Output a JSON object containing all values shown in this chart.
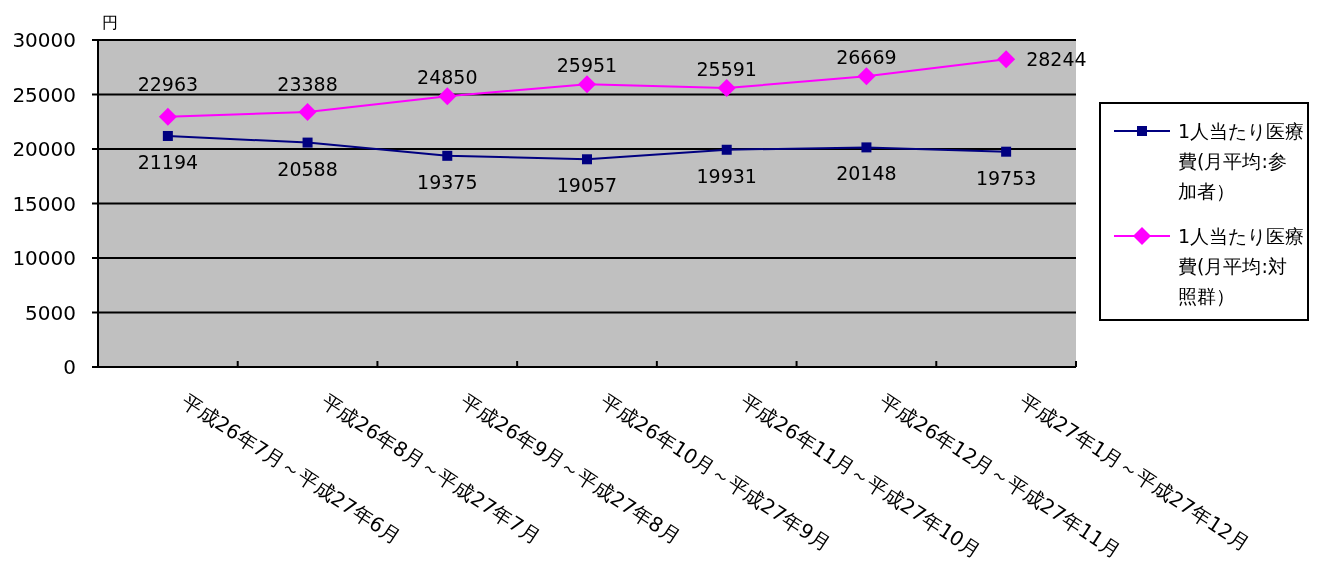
{
  "chart_data": {
    "type": "line",
    "ylabel": "円",
    "categories": [
      "平成26年7月～平成27年6月",
      "平成26年8月～平成27年7月",
      "平成26年9月～平成27年8月",
      "平成26年10月～平成27年9月",
      "平成26年11月～平成27年10月",
      "平成26年12月～平成27年11月",
      "平成27年1月～平成27年12月"
    ],
    "series": [
      {
        "name": "1人当たり医療費(月平均:参加者）",
        "color": "#000080",
        "marker": "square",
        "values": [
          21194,
          20588,
          19375,
          19057,
          19931,
          20148,
          19753
        ]
      },
      {
        "name": "1人当たり医療費(月平均:対照群）",
        "color": "#ff00ff",
        "marker": "diamond",
        "values": [
          22963,
          23388,
          24850,
          25951,
          25591,
          26669,
          28244
        ]
      }
    ],
    "ylim": [
      0,
      30000
    ],
    "yticks": [
      0,
      5000,
      10000,
      15000,
      20000,
      25000,
      30000
    ],
    "grid": "y",
    "legend": "right",
    "data_labels": true
  }
}
